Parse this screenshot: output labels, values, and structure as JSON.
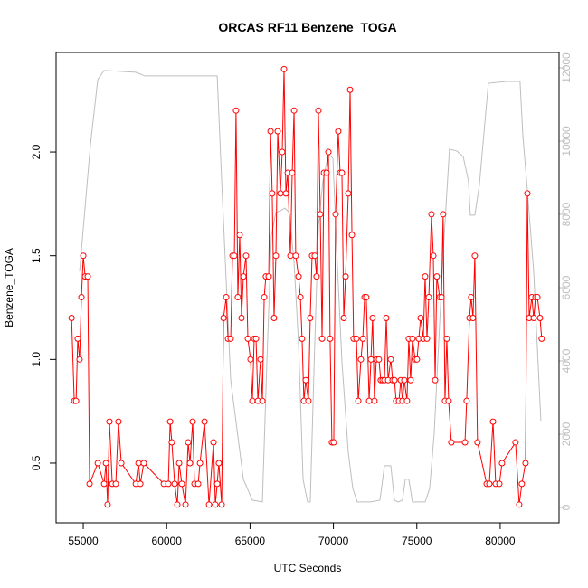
{
  "chart_data": {
    "type": "line",
    "title": "ORCAS RF11 Benzene_TOGA",
    "xlabel": "UTC Seconds",
    "ylabel": "Benzene_TOGA",
    "xlim": [
      53370,
      83530
    ],
    "ylim": [
      0.212,
      2.48
    ],
    "y2lim": [
      -420,
      12420
    ],
    "xticks": [
      55000,
      60000,
      65000,
      70000,
      75000,
      80000
    ],
    "yticks": [
      0.5,
      {
        "value": 1.0,
        "label": "1.0"
      },
      1.5,
      {
        "value": 2.0,
        "label": "2.0"
      }
    ],
    "y2ticks": [
      0,
      2000,
      4000,
      6000,
      8000,
      10000,
      12000
    ],
    "series": [
      {
        "color": "#bebebe",
        "axis": "y2",
        "markers": false,
        "x": [
          54780,
          55430,
          55870,
          56250,
          58150,
          58420,
          58690,
          63030,
          63300,
          63840,
          64600,
          65140,
          65740,
          66010,
          66280,
          66550,
          66820,
          67090,
          67360,
          67640,
          67910,
          68180,
          68450,
          68610,
          68880,
          69100,
          69370,
          69700,
          69970,
          70180,
          70510,
          70890,
          71160,
          71430,
          72250,
          72790,
          73060,
          73440,
          73660,
          73870,
          74140,
          74310,
          74520,
          74740,
          75500,
          75770,
          76040,
          76580,
          76960,
          77400,
          77780,
          78100,
          78210,
          78480,
          78750,
          79290,
          80380,
          81190,
          81360,
          81630,
          82010,
          82440
        ],
        "values": [
          6440,
          9900,
          11680,
          11930,
          11880,
          11830,
          11780,
          11780,
          8910,
          3480,
          770,
          200,
          150,
          3980,
          7430,
          8050,
          8100,
          8170,
          8050,
          6690,
          4470,
          770,
          150,
          150,
          4470,
          7680,
          8910,
          9650,
          9530,
          7190,
          3980,
          1510,
          520,
          150,
          150,
          200,
          1140,
          1140,
          200,
          150,
          200,
          770,
          770,
          150,
          150,
          520,
          2000,
          6940,
          9780,
          9730,
          9580,
          8910,
          7980,
          7980,
          8790,
          11580,
          11630,
          11630,
          10150,
          8670,
          6440,
          2370
        ]
      },
      {
        "color": "#ff0000",
        "markers": true,
        "x": [
          54300,
          54460,
          54570,
          54670,
          54780,
          54890,
          55000,
          55110,
          55270,
          55380,
          55870,
          56250,
          56360,
          56460,
          56570,
          56740,
          56950,
          57110,
          57280,
          58150,
          58310,
          58420,
          58630,
          59830,
          60100,
          60210,
          60310,
          60480,
          60640,
          60750,
          60910,
          61130,
          61290,
          61400,
          61560,
          61670,
          61890,
          62000,
          62270,
          62540,
          62810,
          62920,
          63030,
          63130,
          63300,
          63410,
          63570,
          63680,
          63840,
          63950,
          64060,
          64160,
          64270,
          64380,
          64490,
          64600,
          64760,
          64870,
          65030,
          65140,
          65250,
          65360,
          65470,
          65630,
          65740,
          65850,
          65950,
          66120,
          66230,
          66330,
          66440,
          66550,
          66660,
          66820,
          66930,
          67040,
          67150,
          67260,
          67420,
          67530,
          67640,
          67740,
          67910,
          68020,
          68120,
          68230,
          68340,
          68500,
          68610,
          68720,
          68880,
          68990,
          69100,
          69210,
          69320,
          69430,
          69590,
          69700,
          69800,
          69910,
          70020,
          70130,
          70290,
          70400,
          70510,
          70620,
          70730,
          70890,
          71000,
          71110,
          71210,
          71380,
          71490,
          71650,
          71760,
          71870,
          71970,
          72140,
          72250,
          72350,
          72460,
          72570,
          72730,
          72840,
          72950,
          73060,
          73170,
          73280,
          73440,
          73550,
          73660,
          73760,
          73930,
          74040,
          74140,
          74250,
          74410,
          74520,
          74630,
          74740,
          74900,
          75010,
          75120,
          75230,
          75390,
          75500,
          75610,
          75720,
          75880,
          75990,
          76100,
          76200,
          76370,
          76480,
          76580,
          76690,
          76800,
          76910,
          77070,
          77890,
          77990,
          78160,
          78260,
          78370,
          78480,
          78640,
          79190,
          79350,
          79570,
          79730,
          79950,
          80110,
          80920,
          81140,
          81300,
          81520,
          81630,
          81740,
          81900,
          82010,
          82120,
          82230,
          82390,
          82490
        ],
        "values": [
          1.2,
          0.8,
          0.8,
          1.1,
          1.0,
          1.3,
          1.5,
          1.4,
          1.4,
          0.4,
          0.5,
          0.4,
          0.5,
          0.3,
          0.7,
          0.4,
          0.4,
          0.7,
          0.5,
          0.4,
          0.5,
          0.4,
          0.5,
          0.4,
          0.4,
          0.7,
          0.6,
          0.4,
          0.3,
          0.5,
          0.4,
          0.3,
          0.6,
          0.5,
          0.7,
          0.4,
          0.4,
          0.5,
          0.7,
          0.3,
          0.6,
          0.3,
          0.4,
          0.5,
          0.3,
          1.2,
          1.3,
          1.1,
          1.1,
          1.5,
          1.5,
          2.2,
          1.3,
          1.6,
          1.2,
          1.4,
          1.5,
          1.1,
          1.0,
          0.8,
          1.1,
          1.1,
          0.8,
          1.0,
          0.8,
          1.3,
          1.4,
          1.4,
          2.1,
          1.8,
          1.2,
          1.5,
          2.1,
          1.8,
          2.0,
          2.4,
          1.8,
          1.9,
          1.5,
          1.9,
          2.2,
          1.5,
          1.4,
          1.3,
          1.1,
          0.8,
          0.9,
          0.8,
          1.2,
          1.5,
          1.5,
          1.4,
          2.2,
          1.7,
          1.1,
          1.9,
          1.9,
          2.0,
          1.1,
          0.6,
          0.6,
          1.7,
          2.1,
          1.9,
          1.9,
          1.2,
          1.4,
          1.8,
          2.3,
          1.6,
          1.1,
          1.1,
          0.8,
          1.0,
          1.1,
          1.3,
          1.3,
          0.8,
          1.0,
          1.2,
          0.8,
          1.0,
          1.0,
          0.9,
          0.9,
          0.9,
          1.2,
          0.9,
          1.0,
          0.9,
          0.9,
          0.8,
          0.8,
          0.9,
          0.8,
          0.9,
          0.8,
          1.1,
          0.9,
          1.1,
          1.0,
          1.0,
          1.1,
          1.2,
          1.1,
          1.4,
          1.1,
          1.3,
          1.7,
          1.5,
          0.9,
          1.4,
          1.3,
          1.3,
          1.7,
          0.8,
          1.1,
          0.8,
          0.6,
          0.6,
          0.8,
          1.2,
          1.3,
          1.2,
          1.5,
          0.6,
          0.4,
          0.4,
          0.7,
          0.4,
          0.4,
          0.5,
          0.6,
          0.3,
          0.4,
          0.5,
          1.8,
          1.2,
          1.3,
          1.2,
          1.3,
          1.3,
          1.2,
          1.1
        ]
      }
    ]
  }
}
